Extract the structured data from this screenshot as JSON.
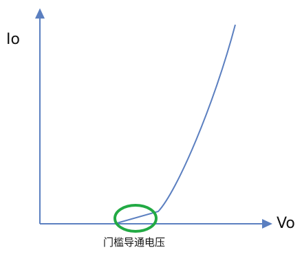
{
  "diagram": {
    "y_axis_label": "Io",
    "x_axis_label": "Vo",
    "annotation": "门槛导通电压",
    "colors": {
      "axis": "#5B7FC0",
      "curve": "#5B7FC0",
      "highlight": "#22AA44",
      "text": "#111111"
    }
  },
  "chart_data": {
    "type": "line",
    "title": "",
    "xlabel": "Vo",
    "ylabel": "Io",
    "grid": false,
    "series": [
      {
        "x": [
          0,
          0.75,
          1.0,
          1.2,
          1.6,
          2.0,
          2.4,
          2.8
        ],
        "y": [
          0,
          0.02,
          0.05,
          0.3,
          1.2,
          2.4,
          3.7,
          5.0
        ]
      }
    ],
    "annotations": [
      "门槛导通电压"
    ]
  }
}
